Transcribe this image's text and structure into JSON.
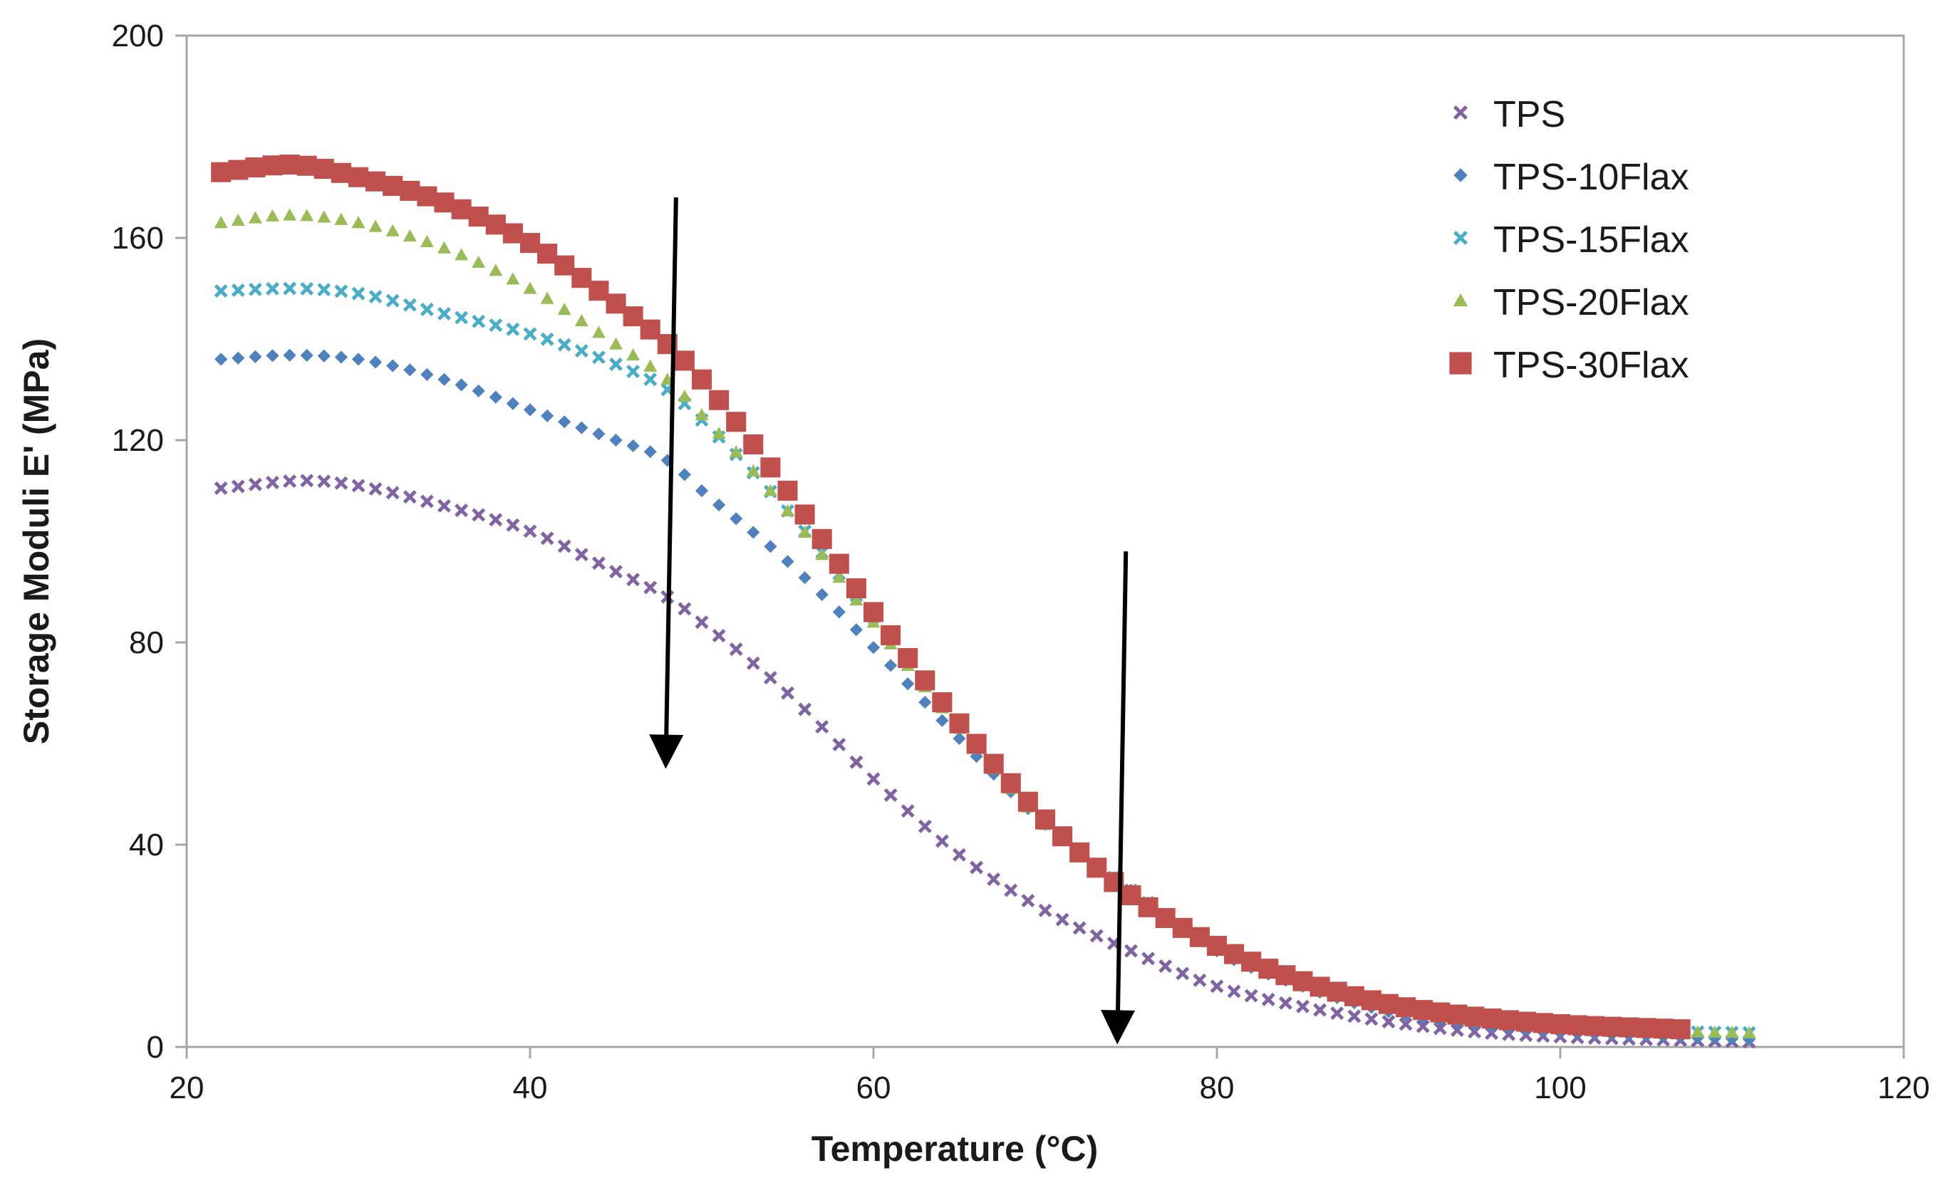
{
  "chart_data": {
    "type": "scatter",
    "title": "",
    "xlabel": "Temperature (°C)",
    "ylabel": "Storage Moduli  E' (MPa)",
    "xlim": [
      20,
      120
    ],
    "ylim": [
      0,
      200
    ],
    "x_ticks": [
      "20",
      "40",
      "60",
      "80",
      "100",
      "120"
    ],
    "y_ticks": [
      "0",
      "40",
      "80",
      "120",
      "160",
      "200"
    ],
    "grid": false,
    "legend_position": "top-right",
    "series": [
      {
        "name": "TPS",
        "color": "#8064a2",
        "marker": "x",
        "x_start": 22,
        "x_end": 111,
        "x_step": 1,
        "keypoints": [
          [
            22,
            110.5
          ],
          [
            27,
            112
          ],
          [
            30,
            111
          ],
          [
            35,
            107
          ],
          [
            40,
            102
          ],
          [
            45,
            94
          ],
          [
            48,
            89
          ],
          [
            50,
            84
          ],
          [
            55,
            70
          ],
          [
            60,
            53
          ],
          [
            65,
            38
          ],
          [
            70,
            27
          ],
          [
            75,
            19
          ],
          [
            80,
            12
          ],
          [
            85,
            8
          ],
          [
            90,
            5
          ],
          [
            95,
            3
          ],
          [
            100,
            2
          ],
          [
            105,
            1.5
          ],
          [
            111,
            1
          ]
        ]
      },
      {
        "name": "TPS-10Flax",
        "color": "#4f81bd",
        "marker": "diamond",
        "x_start": 22,
        "x_end": 111,
        "x_step": 1,
        "keypoints": [
          [
            22,
            136
          ],
          [
            26,
            136.8
          ],
          [
            30,
            136
          ],
          [
            35,
            132
          ],
          [
            40,
            126
          ],
          [
            45,
            120
          ],
          [
            48,
            116
          ],
          [
            50,
            110
          ],
          [
            55,
            96
          ],
          [
            60,
            79
          ],
          [
            65,
            61
          ],
          [
            70,
            44
          ],
          [
            75,
            31
          ],
          [
            80,
            19
          ],
          [
            85,
            12
          ],
          [
            90,
            7
          ],
          [
            95,
            4.5
          ],
          [
            100,
            3
          ],
          [
            105,
            2.2
          ],
          [
            111,
            1.5
          ]
        ]
      },
      {
        "name": "TPS-15Flax",
        "color": "#4bacc6",
        "marker": "x",
        "x_start": 22,
        "x_end": 111,
        "x_step": 1,
        "keypoints": [
          [
            22,
            149.5
          ],
          [
            26,
            150
          ],
          [
            30,
            149
          ],
          [
            35,
            145
          ],
          [
            40,
            141
          ],
          [
            45,
            135
          ],
          [
            48,
            130
          ],
          [
            50,
            124
          ],
          [
            55,
            106
          ],
          [
            60,
            85
          ],
          [
            65,
            64
          ],
          [
            70,
            45
          ],
          [
            75,
            31
          ],
          [
            80,
            20
          ],
          [
            85,
            13
          ],
          [
            90,
            8
          ],
          [
            95,
            5.5
          ],
          [
            100,
            4
          ],
          [
            105,
            3.2
          ],
          [
            111,
            2.8
          ]
        ]
      },
      {
        "name": "TPS-20Flax",
        "color": "#9bbb59",
        "marker": "triangle",
        "x_start": 22,
        "x_end": 111,
        "x_step": 1,
        "keypoints": [
          [
            22,
            163
          ],
          [
            26,
            164.5
          ],
          [
            30,
            163
          ],
          [
            35,
            158
          ],
          [
            40,
            150
          ],
          [
            45,
            139
          ],
          [
            48,
            132
          ],
          [
            50,
            125
          ],
          [
            55,
            106
          ],
          [
            60,
            84
          ],
          [
            65,
            63
          ],
          [
            70,
            44
          ],
          [
            75,
            30
          ],
          [
            80,
            20
          ],
          [
            85,
            13
          ],
          [
            90,
            8
          ],
          [
            95,
            5.5
          ],
          [
            100,
            4
          ],
          [
            105,
            3.2
          ],
          [
            111,
            2.8
          ]
        ]
      },
      {
        "name": "TPS-30Flax",
        "color": "#c0504d",
        "marker": "square",
        "x_start": 22,
        "x_end": 107,
        "x_step": 1,
        "keypoints": [
          [
            22,
            173
          ],
          [
            26,
            174.5
          ],
          [
            30,
            172
          ],
          [
            35,
            167
          ],
          [
            40,
            159
          ],
          [
            45,
            147
          ],
          [
            48,
            139
          ],
          [
            50,
            132
          ],
          [
            55,
            110
          ],
          [
            60,
            86
          ],
          [
            65,
            64
          ],
          [
            70,
            45
          ],
          [
            75,
            30
          ],
          [
            80,
            20
          ],
          [
            85,
            13
          ],
          [
            90,
            8.5
          ],
          [
            95,
            6
          ],
          [
            100,
            4.5
          ],
          [
            107,
            3.5
          ]
        ]
      }
    ],
    "annotations": [
      {
        "type": "arrow",
        "from": [
          48.5,
          168
        ],
        "to": [
          47.9,
          55
        ],
        "color": "#000000"
      },
      {
        "type": "arrow",
        "from": [
          74.7,
          98
        ],
        "to": [
          74.2,
          0.5
        ],
        "color": "#000000"
      }
    ]
  }
}
